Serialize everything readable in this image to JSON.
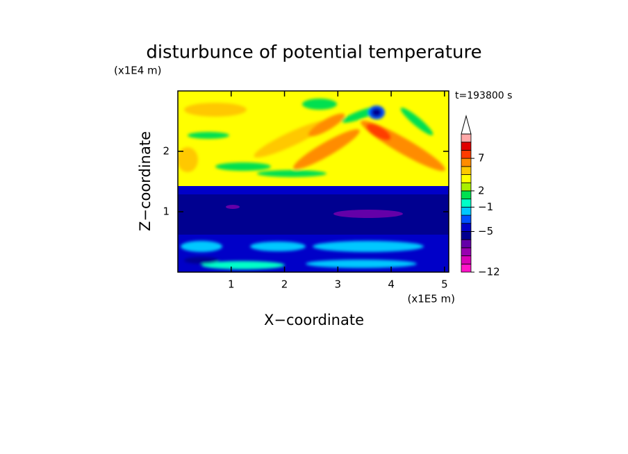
{
  "chart_data": {
    "type": "contour",
    "title": "disturbunce of potential temperature",
    "x_label": "X−coordinate",
    "y_label": "Z−coordinate",
    "x_unit": "(x1E5 m)",
    "y_unit": "(x1E4 m)",
    "annotation": "t=193800 s",
    "xlim": [
      0,
      5.08
    ],
    "xticks": [
      1,
      2,
      3,
      4,
      5
    ],
    "ylim": [
      0,
      3
    ],
    "yticks": [
      1,
      2
    ],
    "colorbar": {
      "levels": [
        -12,
        -10,
        -8,
        -7,
        -6,
        -5,
        -4,
        -3,
        -1,
        0,
        2,
        3,
        4,
        5,
        7,
        9,
        11,
        13
      ],
      "colors": [
        "#ff14c8",
        "#d800b8",
        "#9800b0",
        "#6400a8",
        "#000090",
        "#0000c8",
        "#0050ff",
        "#00c8ff",
        "#00ffc8",
        "#00e050",
        "#a8f000",
        "#ffff00",
        "#ffc800",
        "#ff8c00",
        "#ff3c00",
        "#e00000",
        "#ffa8a8"
      ],
      "extend_color": "#ffffff",
      "ticks": [
        {
          "value": -12,
          "label": "−12"
        },
        {
          "value": -5,
          "label": "−5"
        },
        {
          "value": -1,
          "label": "−1"
        },
        2,
        7
      ]
    }
  }
}
